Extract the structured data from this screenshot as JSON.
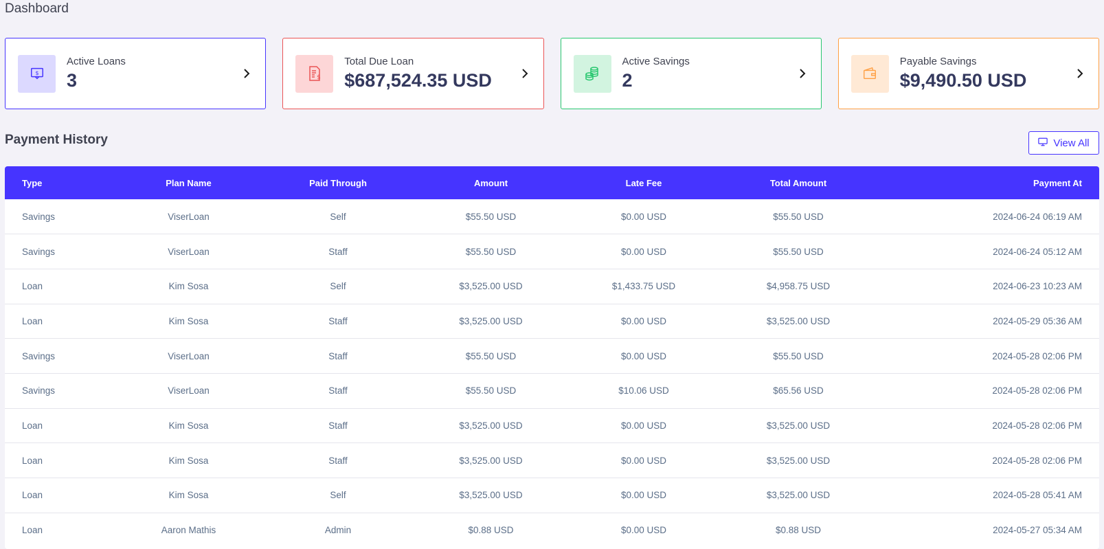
{
  "page_title": "Dashboard",
  "cards": [
    {
      "label": "Active Loans",
      "value": "3",
      "icon": "chat-dollar-icon",
      "color": "#4634ff"
    },
    {
      "label": "Total Due Loan",
      "value": "$687,524.35 USD",
      "icon": "invoice-dollar-icon",
      "color": "#ea5455"
    },
    {
      "label": "Active Savings",
      "value": "2",
      "icon": "coins-icon",
      "color": "#28c76f"
    },
    {
      "label": "Payable Savings",
      "value": "$9,490.50 USD",
      "icon": "wallet-icon",
      "color": "#ff9f43"
    }
  ],
  "payment_history": {
    "title": "Payment History",
    "view_all_label": "View All",
    "columns": [
      "Type",
      "Plan Name",
      "Paid Through",
      "Amount",
      "Late Fee",
      "Total Amount",
      "Payment At"
    ],
    "rows": [
      [
        "Savings",
        "ViserLoan",
        "Self",
        "$55.50 USD",
        "$0.00 USD",
        "$55.50 USD",
        "2024-06-24 06:19 AM"
      ],
      [
        "Savings",
        "ViserLoan",
        "Staff",
        "$55.50 USD",
        "$0.00 USD",
        "$55.50 USD",
        "2024-06-24 05:12 AM"
      ],
      [
        "Loan",
        "Kim Sosa",
        "Self",
        "$3,525.00 USD",
        "$1,433.75 USD",
        "$4,958.75 USD",
        "2024-06-23 10:23 AM"
      ],
      [
        "Loan",
        "Kim Sosa",
        "Staff",
        "$3,525.00 USD",
        "$0.00 USD",
        "$3,525.00 USD",
        "2024-05-29 05:36 AM"
      ],
      [
        "Savings",
        "ViserLoan",
        "Staff",
        "$55.50 USD",
        "$0.00 USD",
        "$55.50 USD",
        "2024-05-28 02:06 PM"
      ],
      [
        "Savings",
        "ViserLoan",
        "Staff",
        "$55.50 USD",
        "$10.06 USD",
        "$65.56 USD",
        "2024-05-28 02:06 PM"
      ],
      [
        "Loan",
        "Kim Sosa",
        "Staff",
        "$3,525.00 USD",
        "$0.00 USD",
        "$3,525.00 USD",
        "2024-05-28 02:06 PM"
      ],
      [
        "Loan",
        "Kim Sosa",
        "Staff",
        "$3,525.00 USD",
        "$0.00 USD",
        "$3,525.00 USD",
        "2024-05-28 02:06 PM"
      ],
      [
        "Loan",
        "Kim Sosa",
        "Self",
        "$3,525.00 USD",
        "$0.00 USD",
        "$3,525.00 USD",
        "2024-05-28 05:41 AM"
      ],
      [
        "Loan",
        "Aaron Mathis",
        "Admin",
        "$0.88 USD",
        "$0.00 USD",
        "$0.88 USD",
        "2024-05-27 05:34 AM"
      ]
    ]
  },
  "colors": {
    "primary": "#4634ff",
    "danger": "#ea5455",
    "success": "#28c76f",
    "warning": "#ff9f43",
    "background": "#f3f2f8"
  }
}
